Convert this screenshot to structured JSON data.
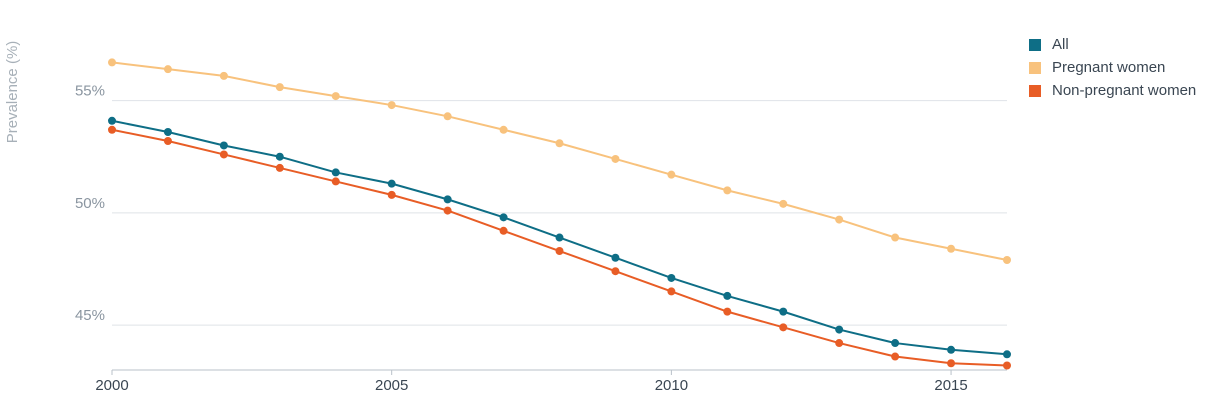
{
  "chart_data": {
    "type": "line",
    "title": "",
    "xlabel": "",
    "ylabel": "Prevalence (%)",
    "x": [
      2000,
      2001,
      2002,
      2003,
      2004,
      2005,
      2006,
      2007,
      2008,
      2009,
      2010,
      2011,
      2012,
      2013,
      2014,
      2015,
      2016
    ],
    "xlim": [
      2000,
      2016
    ],
    "ylim": [
      43.0,
      58.5
    ],
    "x_ticks": [
      2000,
      2005,
      2010,
      2015
    ],
    "x_tick_labels": [
      "2000",
      "2005",
      "2010",
      "2015"
    ],
    "y_ticks": [
      45,
      50,
      55
    ],
    "y_tick_labels": [
      "45%",
      "50%",
      "55%"
    ],
    "grid": true,
    "legend_position": "top-right",
    "series": [
      {
        "name": "All",
        "color": "#0e6e86",
        "values": [
          54.1,
          53.6,
          53.0,
          52.5,
          51.8,
          51.3,
          50.6,
          49.8,
          48.9,
          48.0,
          47.1,
          46.3,
          45.6,
          44.8,
          44.2,
          43.9,
          43.7
        ]
      },
      {
        "name": "Pregnant women",
        "color": "#f8c27d",
        "values": [
          56.7,
          56.4,
          56.1,
          55.6,
          55.2,
          54.8,
          54.3,
          53.7,
          53.1,
          52.4,
          51.7,
          51.0,
          50.4,
          49.7,
          48.9,
          48.4,
          47.9
        ]
      },
      {
        "name": "Non-pregnant women",
        "color": "#e85d26",
        "values": [
          53.7,
          53.2,
          52.6,
          52.0,
          51.4,
          50.8,
          50.1,
          49.2,
          48.3,
          47.4,
          46.5,
          45.6,
          44.9,
          44.2,
          43.6,
          43.3,
          43.2
        ]
      }
    ]
  }
}
